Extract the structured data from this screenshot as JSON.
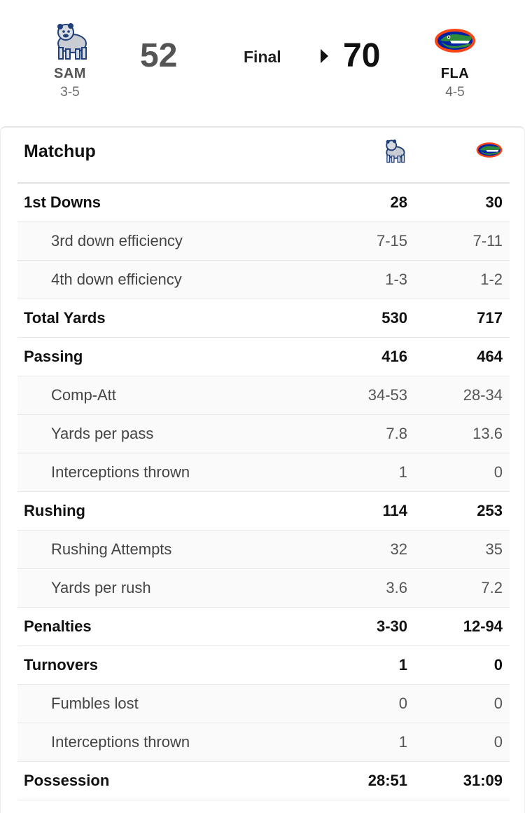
{
  "game": {
    "status": "Final",
    "home": {
      "abbr": "SAM",
      "record": "3-5",
      "score": "52",
      "logo": "bearkat-icon",
      "color": "#1f3f7a"
    },
    "away": {
      "abbr": "FLA",
      "record": "4-5",
      "score": "70",
      "logo": "gator-icon",
      "color": "#0021a5",
      "accent": "#fa4616"
    }
  },
  "matchup": {
    "title": "Matchup",
    "rows": [
      {
        "label": "1st Downs",
        "home": "28",
        "away": "30",
        "sub": false
      },
      {
        "label": "3rd down efficiency",
        "home": "7-15",
        "away": "7-11",
        "sub": true
      },
      {
        "label": "4th down efficiency",
        "home": "1-3",
        "away": "1-2",
        "sub": true
      },
      {
        "label": "Total Yards",
        "home": "530",
        "away": "717",
        "sub": false
      },
      {
        "label": "Passing",
        "home": "416",
        "away": "464",
        "sub": false
      },
      {
        "label": "Comp-Att",
        "home": "34-53",
        "away": "28-34",
        "sub": true
      },
      {
        "label": "Yards per pass",
        "home": "7.8",
        "away": "13.6",
        "sub": true
      },
      {
        "label": "Interceptions thrown",
        "home": "1",
        "away": "0",
        "sub": true
      },
      {
        "label": "Rushing",
        "home": "114",
        "away": "253",
        "sub": false
      },
      {
        "label": "Rushing Attempts",
        "home": "32",
        "away": "35",
        "sub": true
      },
      {
        "label": "Yards per rush",
        "home": "3.6",
        "away": "7.2",
        "sub": true
      },
      {
        "label": "Penalties",
        "home": "3-30",
        "away": "12-94",
        "sub": false
      },
      {
        "label": "Turnovers",
        "home": "1",
        "away": "0",
        "sub": false
      },
      {
        "label": "Fumbles lost",
        "home": "0",
        "away": "0",
        "sub": true
      },
      {
        "label": "Interceptions thrown",
        "home": "1",
        "away": "0",
        "sub": true
      },
      {
        "label": "Possession",
        "home": "28:51",
        "away": "31:09",
        "sub": false
      }
    ]
  }
}
